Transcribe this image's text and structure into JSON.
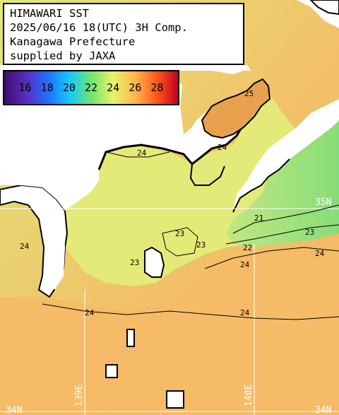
{
  "header": {
    "line1": "HIMAWARI SST",
    "line2": "2025/06/16 18(UTC) 3H Comp.",
    "line3": "Kanagawa Prefecture",
    "line4": "supplied by JAXA"
  },
  "colorbar": {
    "labels": [
      "16",
      "18",
      "20",
      "22",
      "24",
      "26",
      "28"
    ],
    "colors": [
      "#3a0e6b",
      "#5a2cc0",
      "#1f6fff",
      "#14c8ff",
      "#6fe56f",
      "#e8f36a",
      "#ffb84d",
      "#ff5a1a",
      "#c40020"
    ]
  },
  "grid": {
    "lat_labels": [
      "35N",
      "34N",
      "34N"
    ],
    "lon_labels": [
      "139E",
      "140E"
    ]
  },
  "contours": {
    "labels": [
      "25",
      "24",
      "24",
      "21",
      "23",
      "22",
      "23",
      "24",
      "24",
      "24",
      "23",
      "24",
      "23",
      "24"
    ]
  },
  "colors": {
    "land": "#ffffff",
    "coast": "#000000",
    "sea_warm": "#f6b764",
    "sea_mid": "#e6ea7a",
    "sea_cool": "#8fe07a",
    "grid_line": "#ffffff"
  }
}
